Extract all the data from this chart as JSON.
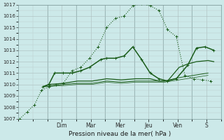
{
  "xlabel": "Pression niveau de la mer( hPa )",
  "ylim": [
    1007,
    1017
  ],
  "yticks": [
    1007,
    1008,
    1009,
    1010,
    1011,
    1012,
    1013,
    1014,
    1015,
    1016,
    1017
  ],
  "xlim": [
    0,
    7
  ],
  "day_labels": [
    "Dim",
    "Mar",
    "Mer",
    "Jeu",
    "Ven",
    "S"
  ],
  "day_positions": [
    1.5,
    2.5,
    3.5,
    4.5,
    5.5,
    6.5
  ],
  "bg_color": "#cce9e9",
  "line_color": "#1a5c1a",
  "grid_major_color": "#aacfcf",
  "grid_minor_color": "#bbdede",
  "line1_x": [
    0.05,
    0.3,
    0.55,
    0.8,
    1.05,
    1.3,
    1.55,
    1.85,
    2.15,
    2.45,
    2.75,
    3.05,
    3.35,
    3.65,
    3.95,
    4.25,
    4.55,
    4.85,
    5.15,
    5.45,
    5.75,
    6.05,
    6.35,
    6.65
  ],
  "line1_y": [
    1007.0,
    1007.6,
    1008.2,
    1009.5,
    1009.8,
    1010.0,
    1010.1,
    1011.2,
    1011.5,
    1012.3,
    1013.3,
    1015.0,
    1015.8,
    1016.0,
    1016.9,
    1017.1,
    1016.9,
    1016.5,
    1014.8,
    1014.2,
    1010.8,
    1010.5,
    1010.4,
    1010.3
  ],
  "line2_x": [
    0.85,
    1.05,
    1.25,
    1.55,
    1.85,
    2.15,
    2.45,
    2.85,
    3.05,
    3.35,
    3.65,
    3.95,
    4.25,
    4.55,
    4.85,
    5.15,
    5.45,
    5.85,
    6.15,
    6.45,
    6.75
  ],
  "line2_y": [
    1009.8,
    1010.0,
    1011.0,
    1011.0,
    1011.0,
    1011.2,
    1011.5,
    1012.2,
    1012.3,
    1012.3,
    1012.5,
    1013.3,
    1012.2,
    1011.0,
    1010.5,
    1010.3,
    1010.5,
    1011.7,
    1013.2,
    1013.3,
    1013.0
  ],
  "line3_x": [
    0.85,
    1.05,
    1.55,
    2.05,
    2.55,
    3.05,
    3.55,
    4.05,
    4.55,
    4.85,
    5.15,
    5.55,
    5.85,
    6.15,
    6.55,
    6.75
  ],
  "line3_y": [
    1009.8,
    1010.0,
    1010.1,
    1010.3,
    1010.3,
    1010.5,
    1010.4,
    1010.5,
    1010.5,
    1010.3,
    1010.3,
    1011.5,
    1011.8,
    1012.0,
    1012.1,
    1012.0
  ],
  "line4_x": [
    0.85,
    1.55,
    2.05,
    2.55,
    3.05,
    3.55,
    4.05,
    4.55,
    5.05,
    5.55,
    6.05,
    6.55
  ],
  "line4_y": [
    1009.8,
    1010.0,
    1010.1,
    1010.1,
    1010.3,
    1010.2,
    1010.3,
    1010.3,
    1010.3,
    1010.6,
    1010.8,
    1011.0
  ],
  "line5_x": [
    0.85,
    1.55,
    2.05,
    2.55,
    3.05,
    3.55,
    4.05,
    4.55,
    5.05,
    5.55,
    6.05,
    6.55
  ],
  "line5_y": [
    1009.8,
    1009.9,
    1010.0,
    1010.0,
    1010.2,
    1010.1,
    1010.2,
    1010.2,
    1010.2,
    1010.4,
    1010.6,
    1010.8
  ]
}
